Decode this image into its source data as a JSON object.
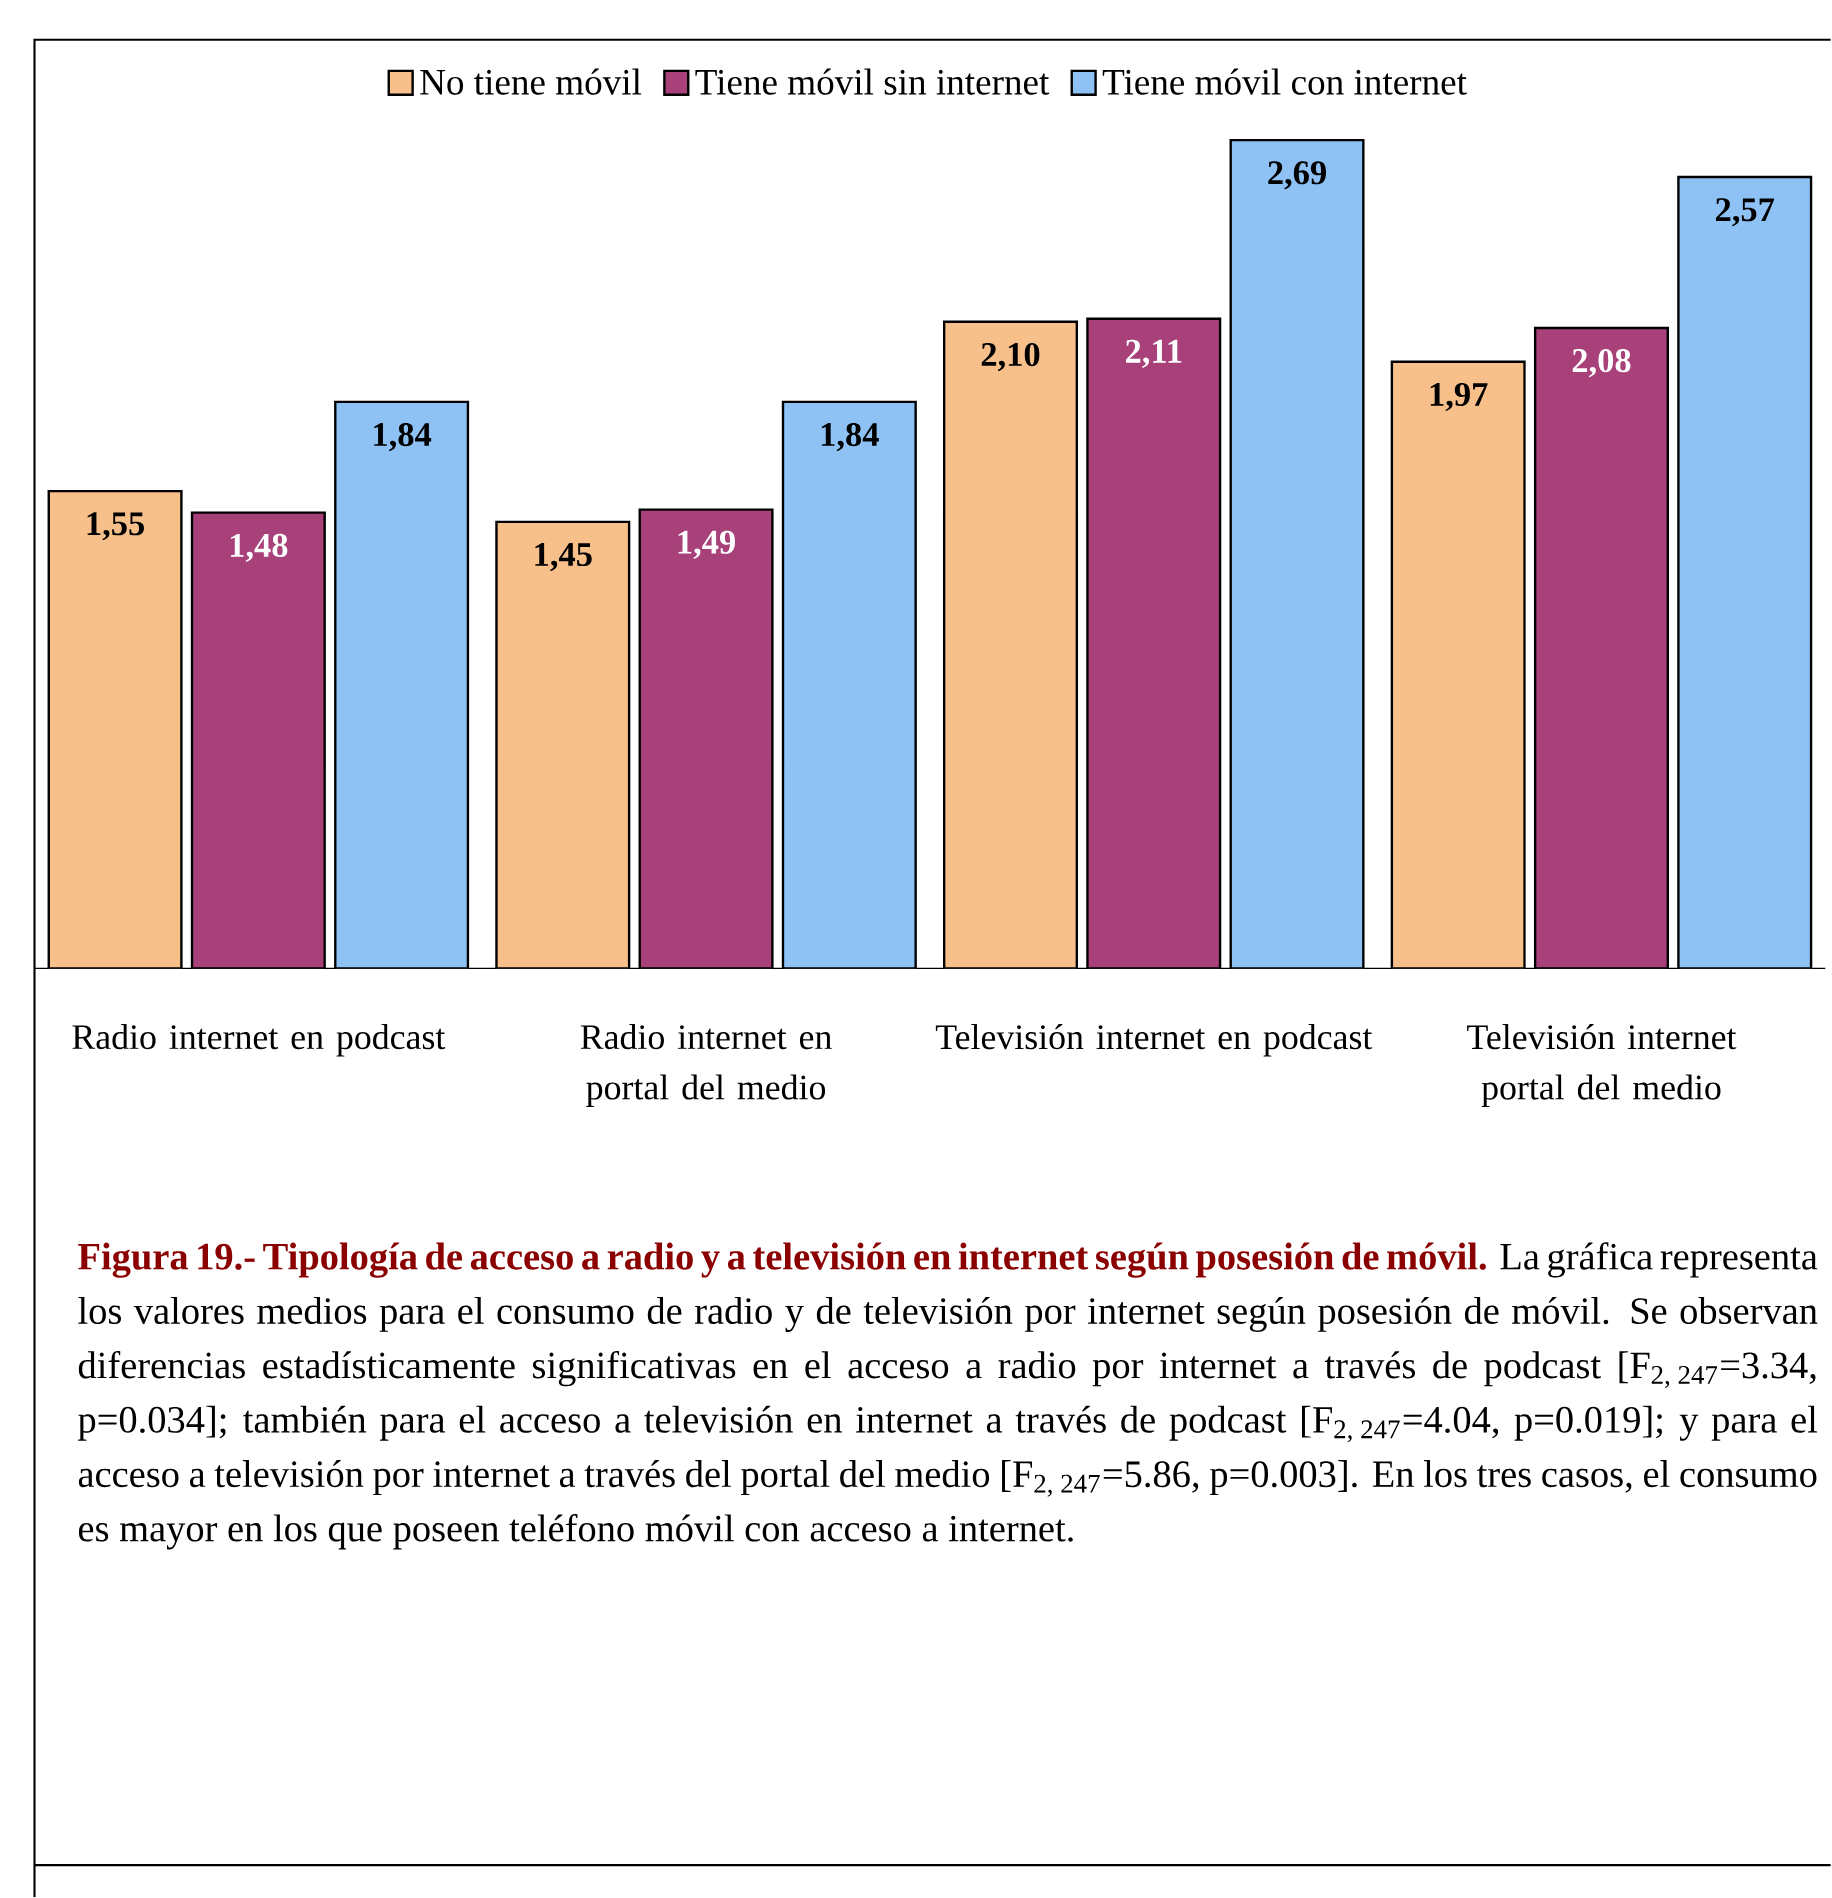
{
  "chart_data": {
    "type": "bar",
    "title": "Figura 19.- Tipología de acceso a radio y a televisión en internet según posesión de móvil.",
    "annotations": [
      "La gráfica representa los valores medios para el consumo de radio y de televisión por internet según posesión de móvil. Se observan diferencias estadísticamente significativas en el acceso a radio por internet a través de podcast [F$_{2, 247}$=3.34, p=0.034]; también para el acceso a televisión en internet a través de podcast [F$_{2, 247}$=4.04, p=0.019]; y para el acceso a televisión por internet a través del portal del medio [F$_{2, 247}$=5.86, p=0.003]. En los tres casos, el consumo es mayor en los que poseen teléfono móvil con acceso a internet."
    ],
    "categories": [
      "Radio internet en podcast",
      "Radio internet en portal del medio",
      "Televisión internet en podcast",
      "Televisión internet portal del medio"
    ],
    "series": [
      {
        "name": "No tiene móvil",
        "color": "#f7c08a",
        "values": [
          1.55,
          1.45,
          2.1,
          1.97
        ],
        "value_labels": [
          "1,55",
          "1,45",
          "2,10",
          "1,97"
        ]
      },
      {
        "name": "Tiene móvil sin internet",
        "color": "#a8407a",
        "values": [
          1.48,
          1.49,
          2.11,
          2.08
        ],
        "value_labels": [
          "1,48",
          "1,49",
          "2,11",
          "2,08"
        ]
      },
      {
        "name": "Tiene móvil con internet",
        "color": "#8ec2f4",
        "values": [
          1.84,
          1.84,
          2.69,
          2.57
        ],
        "value_labels": [
          "1,84",
          "1,84",
          "2,69",
          "2,57"
        ]
      }
    ],
    "legend": "top"
  }
}
